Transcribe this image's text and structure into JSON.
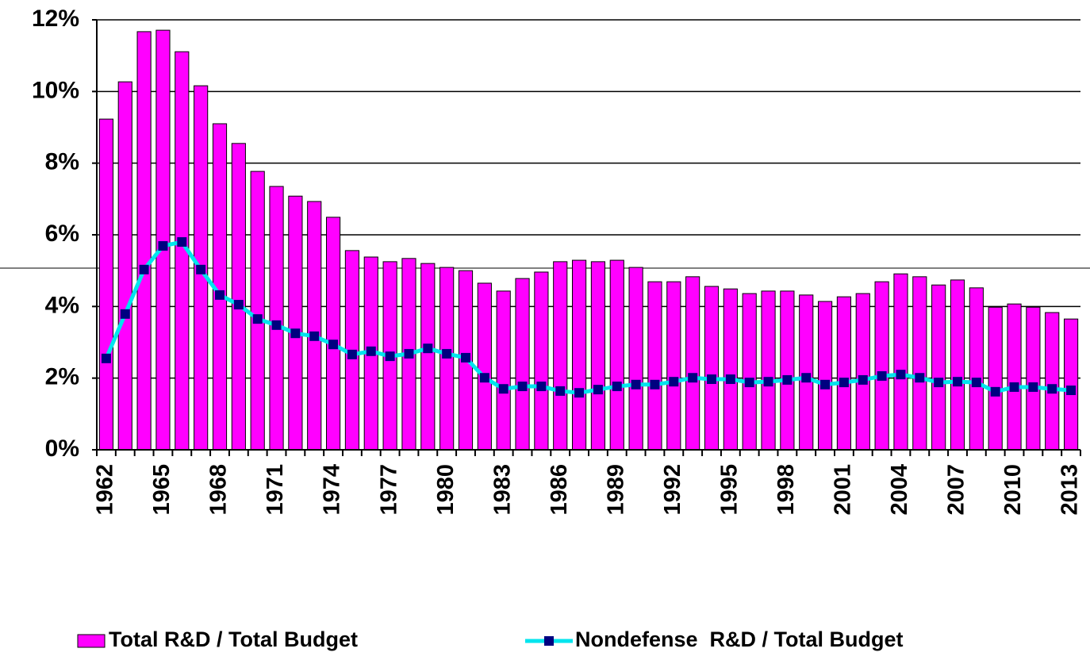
{
  "chart_data": {
    "type": "bar+line",
    "categories": [
      "1962",
      null,
      null,
      "1965",
      null,
      null,
      "1968",
      null,
      null,
      "1971",
      null,
      null,
      "1974",
      null,
      null,
      "1977",
      null,
      null,
      "1980",
      null,
      null,
      "1983",
      null,
      null,
      "1986",
      null,
      null,
      "1989",
      null,
      null,
      "1992",
      null,
      null,
      "1995",
      null,
      null,
      "1998",
      null,
      null,
      "2001",
      null,
      null,
      "2004",
      null,
      null,
      "2007",
      null,
      null,
      "2010",
      null,
      null,
      "2013"
    ],
    "series": [
      {
        "name": "Total R&D / Total Budget",
        "type": "bar",
        "color": "#ff00ff",
        "values": [
          9.23,
          10.27,
          11.67,
          11.71,
          11.11,
          10.16,
          9.1,
          8.55,
          7.77,
          7.35,
          7.08,
          6.93,
          6.49,
          5.56,
          5.38,
          5.25,
          5.34,
          5.2,
          5.09,
          5.0,
          4.65,
          4.43,
          4.78,
          4.96,
          5.25,
          5.29,
          5.25,
          5.29,
          5.09,
          4.69,
          4.69,
          4.83,
          4.56,
          4.49,
          4.36,
          4.43,
          4.43,
          4.32,
          4.14,
          4.27,
          4.36,
          4.69,
          4.91,
          4.83,
          4.6,
          4.74,
          4.52,
          3.98,
          4.07,
          3.98,
          3.83,
          3.65
        ]
      },
      {
        "name": "Nondefense  R&D / Total Budget",
        "type": "line",
        "color": "#00e5ee",
        "marker_color": "#000080",
        "values": [
          2.55,
          3.79,
          5.03,
          5.69,
          5.8,
          5.03,
          4.32,
          4.05,
          3.65,
          3.48,
          3.25,
          3.17,
          2.94,
          2.66,
          2.75,
          2.61,
          2.68,
          2.83,
          2.68,
          2.57,
          2.01,
          1.7,
          1.77,
          1.77,
          1.64,
          1.59,
          1.68,
          1.77,
          1.82,
          1.82,
          1.9,
          2.01,
          1.97,
          1.97,
          1.88,
          1.9,
          1.95,
          2.01,
          1.82,
          1.88,
          1.95,
          2.06,
          2.1,
          2.01,
          1.88,
          1.9,
          1.88,
          1.62,
          1.75,
          1.75,
          1.7,
          1.66
        ]
      }
    ],
    "ylim": [
      0,
      12
    ],
    "yticks": [
      {
        "value": 0,
        "label": "0%"
      },
      {
        "value": 2,
        "label": "2%"
      },
      {
        "value": 4,
        "label": "4%"
      },
      {
        "value": 6,
        "label": "6%"
      },
      {
        "value": 8,
        "label": "8%"
      },
      {
        "value": 10,
        "label": "10%"
      },
      {
        "value": 12,
        "label": "12%"
      }
    ],
    "grid": true,
    "legend": "bottom"
  }
}
